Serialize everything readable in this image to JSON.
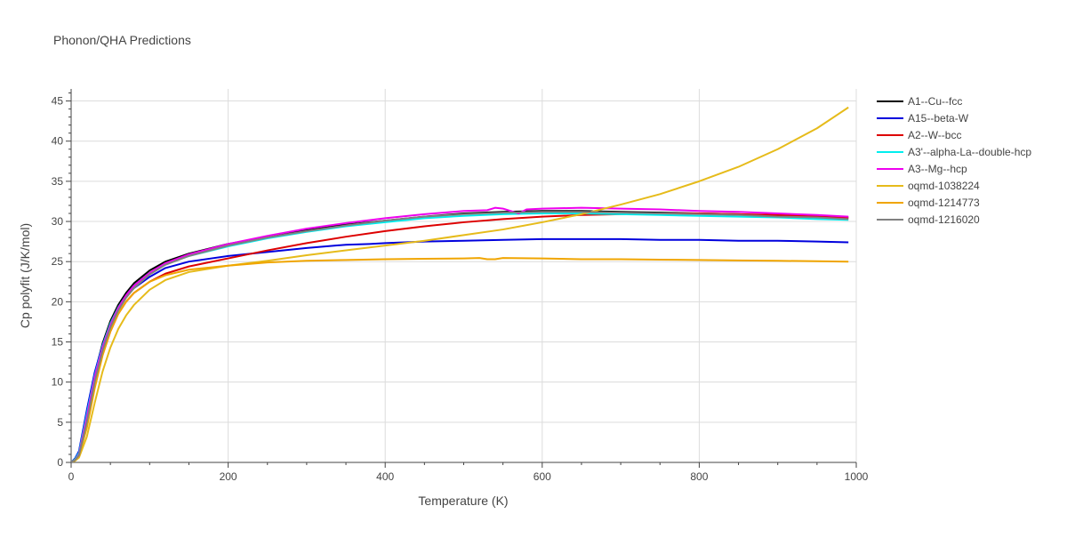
{
  "chart_data": {
    "type": "line",
    "title": "Phonon/QHA Predictions",
    "xlabel": "Temperature (K)",
    "ylabel": "Cp polyfit (J/K/mol)",
    "xlim": [
      0,
      1000
    ],
    "ylim": [
      0,
      46.5
    ],
    "xticks": [
      0,
      200,
      400,
      600,
      800,
      1000
    ],
    "yticks": [
      0,
      5,
      10,
      15,
      20,
      25,
      30,
      35,
      40,
      45
    ],
    "grid": true,
    "legend_position": "right",
    "series": [
      {
        "name": "A1--Cu--fcc",
        "color": "#000000",
        "x": [
          0,
          5,
          10,
          20,
          30,
          40,
          50,
          60,
          70,
          80,
          100,
          120,
          150,
          200,
          250,
          300,
          350,
          400,
          450,
          500,
          550,
          600,
          650,
          700,
          750,
          800,
          850,
          900,
          950,
          990
        ],
        "y": [
          0,
          0.3,
          1.0,
          5.8,
          11.0,
          14.8,
          17.6,
          19.6,
          21.1,
          22.3,
          23.9,
          25.0,
          26.0,
          27.2,
          28.1,
          28.9,
          29.6,
          30.1,
          30.6,
          31.0,
          31.2,
          31.3,
          31.3,
          31.2,
          31.1,
          31.0,
          30.9,
          30.7,
          30.6,
          30.5
        ]
      },
      {
        "name": "A15--beta-W",
        "color": "#0000dd",
        "x": [
          0,
          5,
          10,
          20,
          30,
          40,
          50,
          60,
          70,
          80,
          100,
          120,
          150,
          200,
          250,
          300,
          350,
          380,
          400,
          450,
          500,
          550,
          600,
          650,
          700,
          750,
          800,
          850,
          900,
          950,
          990
        ],
        "y": [
          0,
          0.5,
          1.4,
          6.5,
          11.2,
          14.6,
          17.2,
          19.2,
          20.6,
          21.7,
          23.1,
          24.2,
          25.0,
          25.7,
          26.2,
          26.7,
          27.1,
          27.2,
          27.3,
          27.5,
          27.6,
          27.7,
          27.8,
          27.8,
          27.8,
          27.7,
          27.7,
          27.6,
          27.6,
          27.5,
          27.4
        ]
      },
      {
        "name": "A2--W--bcc",
        "color": "#dd0000",
        "x": [
          0,
          5,
          10,
          20,
          30,
          40,
          50,
          60,
          70,
          80,
          100,
          120,
          150,
          200,
          250,
          300,
          350,
          400,
          450,
          500,
          550,
          600,
          650,
          700,
          750,
          800,
          850,
          900,
          950,
          990
        ],
        "y": [
          0,
          0.3,
          0.9,
          4.5,
          9.5,
          13.4,
          16.3,
          18.5,
          20.0,
          21.1,
          22.5,
          23.5,
          24.4,
          25.4,
          26.4,
          27.3,
          28.1,
          28.8,
          29.4,
          29.9,
          30.3,
          30.6,
          30.8,
          30.9,
          31.0,
          31.0,
          30.9,
          30.8,
          30.6,
          30.4
        ]
      },
      {
        "name": "A3'--alpha-La--double-hcp",
        "color": "#00eeee",
        "x": [
          0,
          5,
          10,
          20,
          30,
          40,
          50,
          60,
          70,
          80,
          100,
          120,
          150,
          200,
          250,
          300,
          350,
          400,
          450,
          500,
          550,
          600,
          650,
          700,
          750,
          800,
          850,
          900,
          950,
          990
        ],
        "y": [
          0,
          0.4,
          1.2,
          6.0,
          10.8,
          14.5,
          17.3,
          19.3,
          20.8,
          22.0,
          23.6,
          24.7,
          25.7,
          26.9,
          27.9,
          28.7,
          29.4,
          29.9,
          30.4,
          30.7,
          30.9,
          31.0,
          31.0,
          30.9,
          30.8,
          30.7,
          30.6,
          30.5,
          30.3,
          30.2
        ]
      },
      {
        "name": "A3--Mg--hcp",
        "color": "#ee00ee",
        "x": [
          0,
          5,
          10,
          20,
          30,
          40,
          50,
          60,
          70,
          80,
          100,
          120,
          150,
          200,
          250,
          300,
          350,
          400,
          450,
          500,
          530,
          540,
          550,
          560,
          570,
          580,
          600,
          650,
          700,
          750,
          800,
          850,
          900,
          950,
          990
        ],
        "y": [
          0,
          0.3,
          1.0,
          5.6,
          10.6,
          14.3,
          17.1,
          19.2,
          20.8,
          22.0,
          23.6,
          24.8,
          25.9,
          27.2,
          28.2,
          29.1,
          29.8,
          30.4,
          30.9,
          31.3,
          31.4,
          31.7,
          31.6,
          31.3,
          31.0,
          31.5,
          31.6,
          31.7,
          31.6,
          31.5,
          31.3,
          31.2,
          31.0,
          30.8,
          30.6
        ]
      },
      {
        "name": "oqmd-1038224",
        "color": "#e6bb1a",
        "x": [
          0,
          5,
          10,
          20,
          30,
          40,
          50,
          60,
          70,
          80,
          100,
          120,
          150,
          200,
          250,
          300,
          350,
          400,
          450,
          500,
          550,
          600,
          650,
          700,
          750,
          800,
          850,
          900,
          950,
          990
        ],
        "y": [
          0,
          0.2,
          0.6,
          3.2,
          7.4,
          11.3,
          14.3,
          16.6,
          18.3,
          19.6,
          21.5,
          22.7,
          23.7,
          24.5,
          25.1,
          25.8,
          26.4,
          27.0,
          27.6,
          28.3,
          29.0,
          29.9,
          30.9,
          32.1,
          33.4,
          35.0,
          36.8,
          39.0,
          41.6,
          44.2
        ]
      },
      {
        "name": "oqmd-1214773",
        "color": "#f0a500",
        "x": [
          0,
          5,
          10,
          20,
          30,
          40,
          50,
          60,
          70,
          80,
          100,
          120,
          150,
          200,
          250,
          300,
          350,
          400,
          450,
          500,
          520,
          530,
          540,
          550,
          600,
          650,
          700,
          750,
          800,
          850,
          900,
          950,
          990
        ],
        "y": [
          0,
          0.3,
          0.8,
          4.3,
          9.2,
          13.3,
          16.3,
          18.5,
          20.0,
          21.1,
          22.5,
          23.3,
          24.0,
          24.5,
          24.9,
          25.1,
          25.2,
          25.3,
          25.35,
          25.4,
          25.45,
          25.3,
          25.3,
          25.45,
          25.4,
          25.3,
          25.3,
          25.25,
          25.2,
          25.15,
          25.1,
          25.05,
          25.0
        ]
      },
      {
        "name": "oqmd-1216020",
        "color": "#808080",
        "x": [
          0,
          5,
          10,
          20,
          30,
          40,
          50,
          60,
          70,
          80,
          100,
          120,
          150,
          200,
          250,
          300,
          350,
          400,
          450,
          500,
          550,
          600,
          650,
          700,
          750,
          800,
          850,
          900,
          950,
          990
        ],
        "y": [
          0,
          0.3,
          0.9,
          5.0,
          10.0,
          13.9,
          16.8,
          18.9,
          20.5,
          21.7,
          23.4,
          24.6,
          25.7,
          27.0,
          28.0,
          28.8,
          29.5,
          30.1,
          30.6,
          30.9,
          31.1,
          31.2,
          31.2,
          31.1,
          31.0,
          30.9,
          30.8,
          30.6,
          30.5,
          30.3
        ]
      }
    ]
  }
}
